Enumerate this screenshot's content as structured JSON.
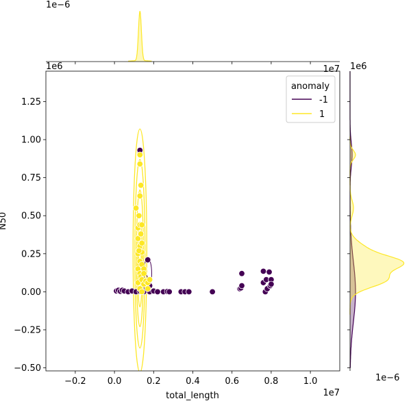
{
  "chart_data": {
    "type": "scatter",
    "variant": "seaborn jointplot (scatter + bivariate KDE contours, marginal KDEs)",
    "xlabel": "total_length",
    "ylabel": "N50",
    "x_multiplier": "1e7",
    "y_multiplier": "1e6",
    "top_marginal_multiplier": "1e−6",
    "right_marginal_multiplier": "1e−6",
    "xlim": [
      -0.35,
      1.15
    ],
    "ylim": [
      -0.52,
      1.45
    ],
    "xticks": [
      -0.2,
      0.0,
      0.2,
      0.4,
      0.6,
      0.8,
      1.0
    ],
    "xtick_labels": [
      "−0.2",
      "0.0",
      "0.2",
      "0.4",
      "0.6",
      "0.8",
      "1.0"
    ],
    "yticks": [
      -0.5,
      -0.25,
      0.0,
      0.25,
      0.5,
      0.75,
      1.0,
      1.25
    ],
    "ytick_labels": [
      "−0.50",
      "−0.25",
      "0.00",
      "0.25",
      "0.50",
      "0.75",
      "1.00",
      "1.25"
    ],
    "grid": false,
    "legend": {
      "title": "anomaly",
      "placement": "top-right",
      "entries": [
        {
          "label": "-1",
          "color": "#440154"
        },
        {
          "label": "1",
          "color": "#fde725"
        }
      ]
    },
    "series": [
      {
        "name": "-1",
        "color": "#440154",
        "points": [
          [
            0.01,
            0.005
          ],
          [
            0.02,
            0.01
          ],
          [
            0.03,
            0.003
          ],
          [
            0.04,
            0.01
          ],
          [
            0.05,
            0.005
          ],
          [
            0.07,
            0.0
          ],
          [
            0.09,
            0.005
          ],
          [
            0.11,
            0.0
          ],
          [
            0.13,
            0.003
          ],
          [
            0.15,
            0.0
          ],
          [
            0.18,
            0.0
          ],
          [
            0.2,
            0.005
          ],
          [
            0.22,
            0.0
          ],
          [
            0.25,
            0.0
          ],
          [
            0.27,
            0.002
          ],
          [
            0.28,
            0.0
          ],
          [
            0.34,
            0.0
          ],
          [
            0.36,
            0.0
          ],
          [
            0.38,
            0.0
          ],
          [
            0.5,
            0.0
          ],
          [
            0.64,
            0.02
          ],
          [
            0.645,
            0.025
          ],
          [
            0.65,
            0.12
          ],
          [
            0.65,
            0.04
          ],
          [
            0.76,
            0.135
          ],
          [
            0.76,
            0.06
          ],
          [
            0.77,
            0.0
          ],
          [
            0.775,
            0.08
          ],
          [
            0.78,
            0.02
          ],
          [
            0.79,
            0.13
          ],
          [
            0.795,
            0.04
          ],
          [
            0.8,
            0.08
          ],
          [
            0.8,
            0.05
          ],
          [
            0.13,
            0.91
          ],
          [
            0.13,
            0.93
          ],
          [
            0.17,
            0.21
          ],
          [
            0.17,
            0.05
          ],
          [
            0.18,
            0.04
          ]
        ]
      },
      {
        "name": "1",
        "color": "#fde725",
        "points": [
          [
            0.11,
            0.55
          ],
          [
            0.12,
            0.35
          ],
          [
            0.12,
            0.42
          ],
          [
            0.12,
            0.25
          ],
          [
            0.12,
            0.15
          ],
          [
            0.12,
            0.06
          ],
          [
            0.13,
            0.9
          ],
          [
            0.13,
            0.63
          ],
          [
            0.13,
            0.44
          ],
          [
            0.13,
            0.3
          ],
          [
            0.13,
            0.2
          ],
          [
            0.13,
            0.12
          ],
          [
            0.13,
            0.02
          ],
          [
            0.135,
            0.7
          ],
          [
            0.135,
            0.38
          ],
          [
            0.135,
            0.1
          ],
          [
            0.14,
            0.44
          ],
          [
            0.14,
            0.32
          ],
          [
            0.14,
            0.26
          ],
          [
            0.14,
            0.18
          ],
          [
            0.14,
            0.08
          ],
          [
            0.14,
            0.0
          ],
          [
            0.15,
            0.15
          ],
          [
            0.15,
            0.05
          ],
          [
            0.15,
            0.12
          ],
          [
            0.16,
            0.07
          ],
          [
            0.17,
            0.06
          ],
          [
            0.17,
            0.02
          ],
          [
            0.18,
            0.08
          ],
          [
            0.13,
            0.84
          ],
          [
            0.125,
            0.5
          ],
          [
            0.125,
            0.27
          ]
        ]
      }
    ],
    "kde_contours": [
      {
        "series": "1",
        "color": "#fde725"
      },
      {
        "series": "-1",
        "color": "#440154"
      }
    ],
    "marginal_top": {
      "series": "1",
      "shape": "single sharp peak near x ≈ 0.13"
    },
    "marginal_right": [
      {
        "series": "1",
        "shape": "main mode near y ≈ 0.2, secondary bump near y ≈ 0.9"
      },
      {
        "series": "-1",
        "shape": "broad low bump centered near y ≈ 0"
      }
    ]
  }
}
